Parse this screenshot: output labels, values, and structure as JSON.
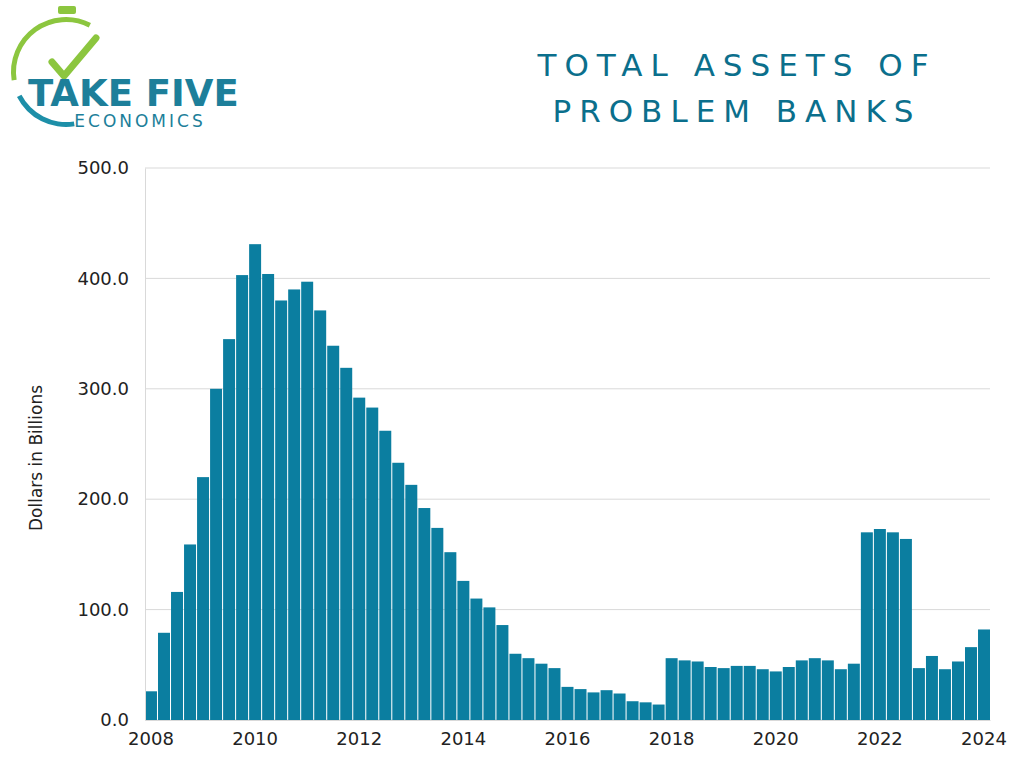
{
  "chart_data": {
    "type": "bar",
    "title": "TOTAL ASSETS OF PROBLEM BANKS",
    "annotations": [
      "TAKE FIVE",
      "ECONOMICS"
    ],
    "y_label": "Dollars in Billions",
    "categories": [
      "2008",
      null,
      null,
      null,
      null,
      null,
      null,
      null,
      "2010",
      null,
      null,
      null,
      null,
      null,
      null,
      null,
      "2012",
      null,
      null,
      null,
      null,
      null,
      null,
      null,
      "2014",
      null,
      null,
      null,
      null,
      null,
      null,
      null,
      "2016",
      null,
      null,
      null,
      null,
      null,
      null,
      null,
      "2018",
      null,
      null,
      null,
      null,
      null,
      null,
      null,
      "2020",
      null,
      null,
      null,
      null,
      null,
      null,
      null,
      "2022",
      null,
      null,
      null,
      null,
      null,
      null,
      null,
      "2024"
    ],
    "values": [
      26,
      79,
      116,
      159,
      220,
      300,
      345,
      403,
      431,
      404,
      380,
      390,
      397,
      371,
      339,
      319,
      292,
      283,
      262,
      233,
      213,
      192,
      174,
      152,
      126,
      110,
      102,
      86,
      60,
      56,
      51,
      47,
      30,
      28,
      25,
      27,
      24,
      17,
      16,
      14,
      56,
      54,
      53,
      48,
      47,
      49,
      49,
      46,
      44,
      48,
      54,
      56,
      54,
      46,
      51,
      170,
      173,
      170,
      164,
      47,
      58,
      46,
      53,
      66,
      82
    ],
    "color": "#0b7ea0",
    "ylim": [
      0,
      500
    ],
    "yticks": [
      {
        "value": 0,
        "label": "0.0"
      },
      {
        "value": 100,
        "label": "100.0"
      },
      {
        "value": 200,
        "label": "200.0"
      },
      {
        "value": 300,
        "label": "300.0"
      },
      {
        "value": 400,
        "label": "400.0"
      },
      {
        "value": 500,
        "label": "500.0"
      }
    ],
    "grid": true
  }
}
